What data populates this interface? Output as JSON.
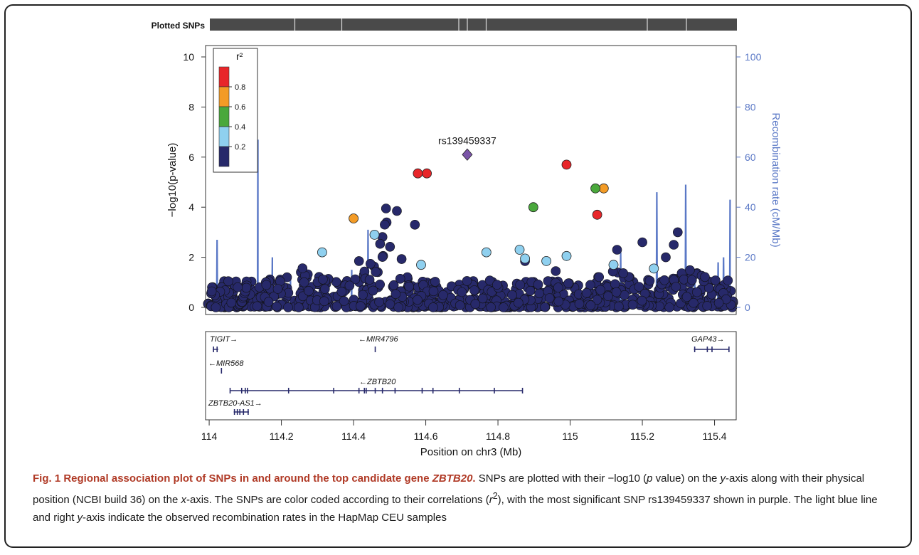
{
  "figure": {
    "caption_label": "Fig. 1",
    "caption_title_prefix": "Regional association plot of SNPs in and around the top candidate gene ",
    "caption_title_gene": "ZBTB20",
    "caption_title_suffix": ".",
    "caption_body": [
      {
        "t": " SNPs are plotted with their −log10 ("
      },
      {
        "t": "p",
        "i": true
      },
      {
        "t": " value) on the "
      },
      {
        "t": "y",
        "i": true
      },
      {
        "t": "-axis along with their physical position (NCBI build 36) on the "
      },
      {
        "t": "x",
        "i": true
      },
      {
        "t": "-axis. The SNPs are color coded according to their correlations ("
      },
      {
        "t": "r",
        "i": true
      },
      {
        "t": "2",
        "sup": true
      },
      {
        "t": "), with the most significant SNP rs139459337 shown in purple. The light blue line and right "
      },
      {
        "t": "y",
        "i": true
      },
      {
        "t": "-axis indicate the observed recombination rates in the HapMap CEU samples"
      }
    ]
  },
  "chart_data": {
    "type": "scatter",
    "plotted_snps_label": "Plotted SNPs",
    "xlabel": "Position on chr3 (Mb)",
    "ylabel_left": "−log10(p-value)",
    "ylabel_right": "Recombination rate (cM/Mb)",
    "xlim": [
      113.99,
      115.46
    ],
    "ylim_left": [
      0,
      10
    ],
    "ylim_right": [
      0,
      100
    ],
    "x_ticks": [
      114,
      114.2,
      114.4,
      114.6,
      114.8,
      115,
      115.2,
      115.4
    ],
    "x_tick_labels": [
      "114",
      "114.2",
      "114.4",
      "114.6",
      "114.8",
      "115",
      "115.2",
      "115.4"
    ],
    "y_ticks_left": [
      0,
      2,
      4,
      6,
      8,
      10
    ],
    "y_ticks_right": [
      0,
      20,
      40,
      60,
      80,
      100
    ],
    "legend": {
      "title": "r²",
      "placement": "top-left",
      "bins": [
        {
          "label": "0.8",
          "color": "#e8262a"
        },
        {
          "label": "0.6",
          "color": "#f39b26"
        },
        {
          "label": "0.4",
          "color": "#4aa83c"
        },
        {
          "label": "0.2",
          "color": "#8fd0ef"
        },
        {
          "label": "",
          "color": "#27296a"
        }
      ]
    },
    "colors": {
      "r2_high": "#e8262a",
      "r2_mid_high": "#f39b26",
      "r2_mid": "#4aa83c",
      "r2_low": "#8fd0ef",
      "r2_none": "#27296a",
      "lead_snp": "#7b55a8",
      "recombination": "#5a78c6",
      "right_axis": "#5a78c6"
    },
    "lead_snp": {
      "name": "rs139459337",
      "x": 114.715,
      "y": 6.1
    },
    "highlighted_snps": [
      {
        "x": 114.578,
        "y": 5.35,
        "r2": "0.8"
      },
      {
        "x": 114.603,
        "y": 5.35,
        "r2": "0.8"
      },
      {
        "x": 114.99,
        "y": 5.7,
        "r2": "0.8"
      },
      {
        "x": 115.075,
        "y": 3.7,
        "r2": "0.8"
      },
      {
        "x": 114.4,
        "y": 3.55,
        "r2": "0.6"
      },
      {
        "x": 115.093,
        "y": 4.75,
        "r2": "0.6"
      },
      {
        "x": 114.898,
        "y": 4.0,
        "r2": "0.4"
      },
      {
        "x": 115.07,
        "y": 4.75,
        "r2": "0.4"
      },
      {
        "x": 114.313,
        "y": 2.2,
        "r2": "0.2"
      },
      {
        "x": 114.458,
        "y": 2.9,
        "r2": "0.2"
      },
      {
        "x": 114.587,
        "y": 1.7,
        "r2": "0.2"
      },
      {
        "x": 114.768,
        "y": 2.2,
        "r2": "0.2"
      },
      {
        "x": 114.86,
        "y": 2.3,
        "r2": "0.2"
      },
      {
        "x": 114.875,
        "y": 1.95,
        "r2": "0.2"
      },
      {
        "x": 114.934,
        "y": 1.85,
        "r2": "0.2"
      },
      {
        "x": 114.99,
        "y": 2.05,
        "r2": "0.2"
      },
      {
        "x": 115.12,
        "y": 1.7,
        "r2": "0.2"
      },
      {
        "x": 115.232,
        "y": 1.55,
        "r2": "0.2"
      }
    ],
    "recombination_peaks": [
      {
        "x": 114.022,
        "rate": 27
      },
      {
        "x": 114.135,
        "rate": 67
      },
      {
        "x": 114.175,
        "rate": 20
      },
      {
        "x": 114.225,
        "rate": 12
      },
      {
        "x": 114.395,
        "rate": 15
      },
      {
        "x": 114.44,
        "rate": 31
      },
      {
        "x": 114.52,
        "rate": 10
      },
      {
        "x": 115.14,
        "rate": 22
      },
      {
        "x": 115.24,
        "rate": 46
      },
      {
        "x": 115.32,
        "rate": 49
      },
      {
        "x": 115.345,
        "rate": 12
      },
      {
        "x": 115.41,
        "rate": 18
      },
      {
        "x": 115.425,
        "rate": 20
      },
      {
        "x": 115.443,
        "rate": 43
      }
    ],
    "genes": [
      {
        "name": "TIGIT",
        "direction": "right",
        "label_x": 114.0,
        "row": 0,
        "start": 114.01,
        "end": 114.025,
        "exons": [
          114.012,
          114.022
        ]
      },
      {
        "name": "MIR4796",
        "direction": "left",
        "label_x": 114.43,
        "row": 0,
        "start": 114.459,
        "end": 114.461,
        "exons": [
          114.46
        ]
      },
      {
        "name": "GAP43",
        "direction": "right",
        "label_x": 115.35,
        "row": 0,
        "start": 115.343,
        "end": 115.44,
        "exons": [
          115.345,
          115.38,
          115.393,
          115.44
        ]
      },
      {
        "name": "MIR568",
        "direction": "left",
        "label_x": 114.0,
        "row": 1,
        "start": 114.033,
        "end": 114.035,
        "exons": [
          114.034
        ]
      },
      {
        "name": "ZBTB20",
        "direction": "left",
        "label_x": 114.43,
        "row": 2,
        "start": 114.057,
        "end": 114.868,
        "exons": [
          114.058,
          114.09,
          114.1,
          114.106,
          114.22,
          114.345,
          114.415,
          114.43,
          114.435,
          114.46,
          114.48,
          114.515,
          114.59,
          114.62,
          114.693,
          114.79,
          114.868
        ]
      },
      {
        "name": "ZBTB20-AS1",
        "direction": "right",
        "label_x": 114.0,
        "row": 3,
        "start": 114.068,
        "end": 114.11,
        "exons": [
          114.07,
          114.078,
          114.085,
          114.095,
          114.108
        ]
      }
    ]
  }
}
